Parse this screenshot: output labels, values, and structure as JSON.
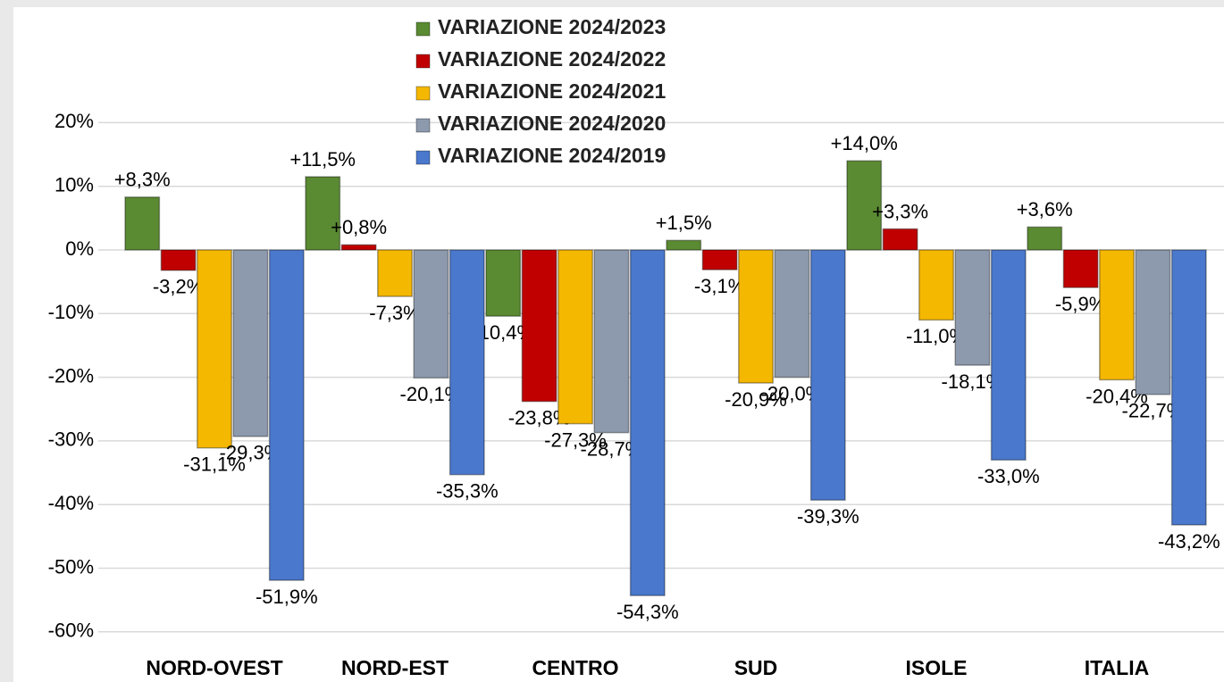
{
  "chart_data": {
    "type": "bar",
    "categories": [
      "NORD-OVEST",
      "NORD-EST",
      "CENTRO",
      "SUD",
      "ISOLE",
      "ITALIA"
    ],
    "series": [
      {
        "name": "VARIAZIONE 2024/2023",
        "color": "#5a8a32",
        "values": [
          8.3,
          11.5,
          -10.4,
          1.5,
          14.0,
          3.6
        ],
        "value_labels": [
          "+8,3%",
          "+11,5%",
          "-10,4%",
          "+1,5%",
          "+14,0%",
          "+3,6%"
        ]
      },
      {
        "name": "VARIAZIONE 2024/2022",
        "color": "#c00000",
        "values": [
          -3.2,
          0.8,
          -23.8,
          -3.1,
          3.3,
          -5.9
        ],
        "value_labels": [
          "-3,2%",
          "+0,8%",
          "-23,8%",
          "-3,1%",
          "+3,3%",
          "-5,9%"
        ]
      },
      {
        "name": "VARIAZIONE 2024/2021",
        "color": "#f5b800",
        "values": [
          -31.1,
          -7.3,
          -27.3,
          -20.9,
          -11.0,
          -20.4
        ],
        "value_labels": [
          "-31,1%",
          "-7,3%",
          "-27,3%",
          "-20,9%",
          "-11,0%",
          "-20,4%"
        ]
      },
      {
        "name": "VARIAZIONE 2024/2020",
        "color": "#8d9aae",
        "values": [
          -29.3,
          -20.1,
          -28.7,
          -20.0,
          -18.1,
          -22.7
        ],
        "value_labels": [
          "-29,3%",
          "-20,1%",
          "-28,7%",
          "-20,0%",
          "-18,1%",
          "-22,7%"
        ]
      },
      {
        "name": "VARIAZIONE 2024/2019",
        "color": "#4a78cc",
        "values": [
          -51.9,
          -35.3,
          -54.3,
          -39.3,
          -33.0,
          -43.2
        ],
        "value_labels": [
          "-51,9%",
          "-35,3%",
          "-54,3%",
          "-39,3%",
          "-33,0%",
          "-43,2%"
        ]
      }
    ],
    "ylim": [
      -60,
      20
    ],
    "yticks": [
      {
        "value": -60,
        "label": "-60%"
      },
      {
        "value": -50,
        "label": "-50%"
      },
      {
        "value": -40,
        "label": "-40%"
      },
      {
        "value": -30,
        "label": "-30%"
      },
      {
        "value": -20,
        "label": "-20%"
      },
      {
        "value": -10,
        "label": "-10%"
      },
      {
        "value": 0,
        "label": "0%"
      },
      {
        "value": 10,
        "label": "10%"
      },
      {
        "value": 20,
        "label": "20%"
      }
    ],
    "grid": true,
    "legend": "top"
  }
}
